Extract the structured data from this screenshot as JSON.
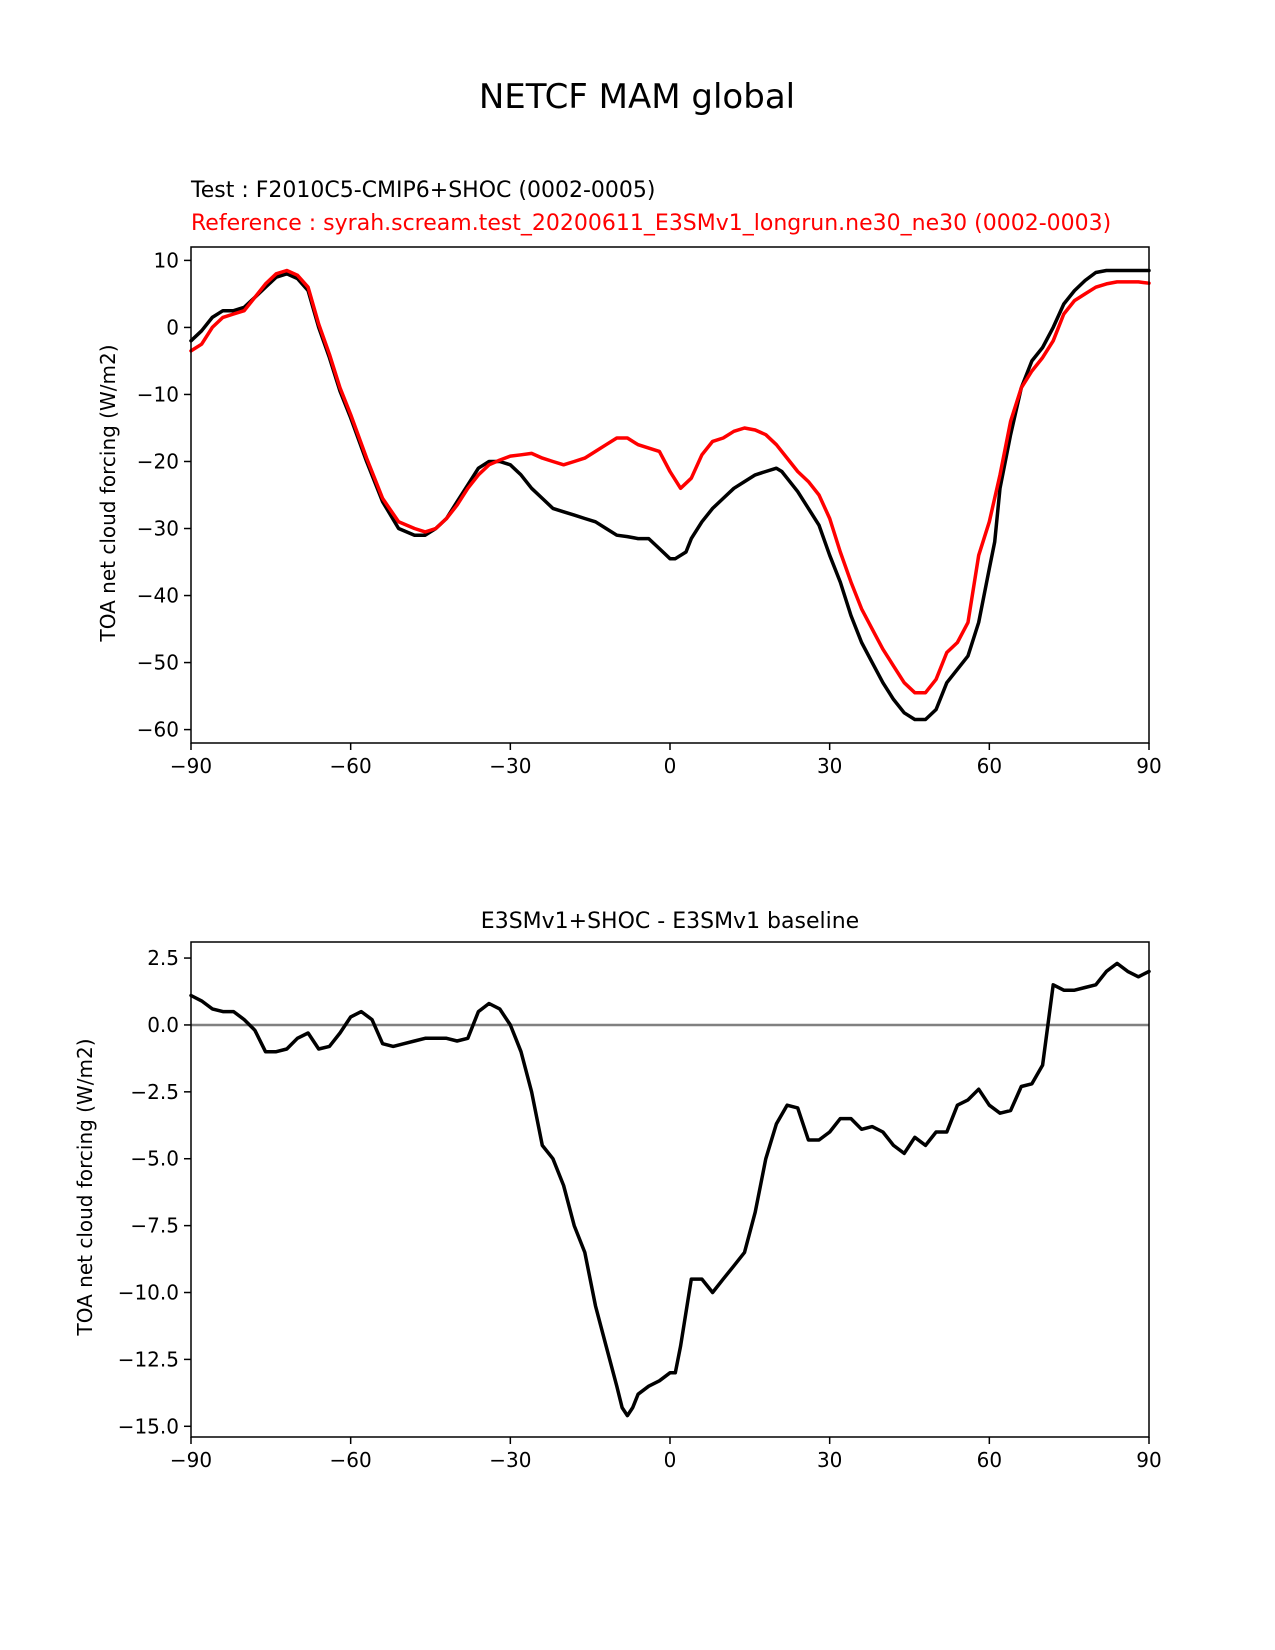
{
  "figure": {
    "title": "NETCF MAM global"
  },
  "chart_data": [
    {
      "type": "line",
      "subtitle_test": "Test : F2010C5-CMIP6+SHOC (0002-0005)",
      "subtitle_ref": "Reference : syrah.scream.test_20200611_E3SMv1_longrun.ne30_ne30 (0002-0003)",
      "xlabel": "",
      "ylabel": "TOA net cloud forcing (W/m2)",
      "xlim": [
        -90,
        90
      ],
      "ylim": [
        -62,
        12
      ],
      "xticks": [
        -90,
        -60,
        -30,
        0,
        30,
        60,
        90
      ],
      "xtick_labels": [
        "−90",
        "−60",
        "−30",
        "0",
        "30",
        "60",
        "90"
      ],
      "yticks": [
        10,
        0,
        -10,
        -20,
        -30,
        -40,
        -50,
        -60
      ],
      "ytick_labels": [
        "10",
        "0",
        "−10",
        "−20",
        "−30",
        "−40",
        "−50",
        "−60"
      ],
      "series": [
        {
          "color": "#000000",
          "x": [
            -90,
            -88,
            -86,
            -84,
            -82,
            -80,
            -78,
            -76,
            -74,
            -72,
            -70,
            -68,
            -66,
            -64,
            -62,
            -60,
            -57,
            -54,
            -51,
            -48,
            -46,
            -44,
            -42,
            -40,
            -38,
            -36,
            -34,
            -32,
            -30,
            -28,
            -26,
            -24,
            -22,
            -20,
            -18,
            -16,
            -14,
            -12,
            -10,
            -8,
            -6,
            -4,
            -2,
            0,
            1,
            3,
            4,
            6,
            8,
            10,
            12,
            14,
            16,
            18,
            20,
            21,
            22,
            24,
            26,
            28,
            30,
            32,
            34,
            36,
            38,
            40,
            42,
            44,
            46,
            48,
            50,
            52,
            54,
            56,
            58,
            60,
            61,
            62,
            64,
            66,
            68,
            70,
            72,
            74,
            76,
            78,
            80,
            82,
            84,
            86,
            88,
            90
          ],
          "y": [
            -2.0,
            -0.5,
            1.5,
            2.5,
            2.5,
            3.0,
            4.5,
            6.0,
            7.5,
            8.0,
            7.3,
            5.5,
            0,
            -4.5,
            -9.5,
            -13.5,
            -20.0,
            -26.0,
            -30.0,
            -31.0,
            -31.0,
            -30.0,
            -28.5,
            -26.0,
            -23.5,
            -21.0,
            -20.0,
            -20.0,
            -20.5,
            -22.0,
            -24.0,
            -25.5,
            -27.0,
            -27.5,
            -28.0,
            -28.5,
            -29.0,
            -30.0,
            -31.0,
            -31.2,
            -31.5,
            -31.5,
            -33.0,
            -34.5,
            -34.5,
            -33.5,
            -31.5,
            -29.0,
            -27.0,
            -25.5,
            -24.0,
            -23.0,
            -22.0,
            -21.5,
            -21.0,
            -21.5,
            -22.5,
            -24.5,
            -27.0,
            -29.5,
            -34.0,
            -38.0,
            -43.0,
            -47.0,
            -50.0,
            -53.0,
            -55.5,
            -57.5,
            -58.5,
            -58.5,
            -57.0,
            -53.0,
            -51.0,
            -49.0,
            -44.0,
            -36.0,
            -32.0,
            -24.0,
            -16.0,
            -9.0,
            -5.0,
            -3.0,
            0,
            3.5,
            5.5,
            7.0,
            8.2,
            8.5,
            8.5,
            8.5,
            8.5,
            8.5
          ]
        },
        {
          "color": "#ff0000",
          "x": [
            -90,
            -88,
            -86,
            -84,
            -82,
            -80,
            -78,
            -76,
            -74,
            -72,
            -70,
            -68,
            -66,
            -64,
            -62,
            -60,
            -57,
            -54,
            -51,
            -48,
            -46,
            -44,
            -42,
            -40,
            -38,
            -36,
            -34,
            -32,
            -30,
            -28,
            -26,
            -24,
            -22,
            -20,
            -18,
            -16,
            -14,
            -12,
            -10,
            -8,
            -6,
            -4,
            -2,
            0,
            2,
            4,
            6,
            8,
            10,
            12,
            14,
            16,
            18,
            20,
            22,
            24,
            26,
            28,
            30,
            32,
            34,
            36,
            38,
            40,
            42,
            44,
            46,
            48,
            50,
            52,
            54,
            56,
            58,
            60,
            62,
            64,
            66,
            68,
            70,
            72,
            74,
            76,
            78,
            80,
            82,
            84,
            86,
            88,
            90
          ],
          "y": [
            -3.5,
            -2.5,
            0,
            1.5,
            2.0,
            2.5,
            4.5,
            6.5,
            8.0,
            8.5,
            7.8,
            6.0,
            0.5,
            -4.0,
            -9.0,
            -13.0,
            -19.5,
            -25.5,
            -29.0,
            -30.0,
            -30.5,
            -30.0,
            -28.5,
            -26.5,
            -24.0,
            -22.0,
            -20.5,
            -19.8,
            -19.2,
            -19.0,
            -18.8,
            -19.5,
            -20.0,
            -20.5,
            -20.0,
            -19.5,
            -18.5,
            -17.5,
            -16.5,
            -16.5,
            -17.5,
            -18.0,
            -18.5,
            -21.5,
            -24.0,
            -22.5,
            -19.0,
            -17.0,
            -16.5,
            -15.5,
            -15.0,
            -15.3,
            -16.0,
            -17.5,
            -19.5,
            -21.5,
            -23.0,
            -25.0,
            -28.5,
            -33.5,
            -38.0,
            -42.0,
            -45.0,
            -48.0,
            -50.5,
            -53.0,
            -54.5,
            -54.5,
            -52.5,
            -48.5,
            -47.0,
            -44.0,
            -34.0,
            -29.0,
            -22.0,
            -14.0,
            -9.0,
            -6.5,
            -4.5,
            -2.0,
            2.0,
            4.0,
            5.0,
            6.0,
            6.5,
            6.8,
            6.8,
            6.8,
            6.6
          ]
        }
      ]
    },
    {
      "type": "line",
      "title": "E3SMv1+SHOC - E3SMv1 baseline",
      "xlabel": "",
      "ylabel": "TOA net cloud forcing (W/m2)",
      "xlim": [
        -90,
        90
      ],
      "ylim": [
        -15.4,
        3.1
      ],
      "xticks": [
        -90,
        -60,
        -30,
        0,
        30,
        60,
        90
      ],
      "xtick_labels": [
        "−90",
        "−60",
        "−30",
        "0",
        "30",
        "60",
        "90"
      ],
      "yticks": [
        2.5,
        0.0,
        -2.5,
        -5.0,
        -7.5,
        -10.0,
        -12.5,
        -15.0
      ],
      "ytick_labels": [
        "2.5",
        "0.0",
        "−2.5",
        "−5.0",
        "−7.5",
        "−10.0",
        "−12.5",
        "−15.0"
      ],
      "zero_line": true,
      "series": [
        {
          "color": "#000000",
          "x": [
            -90,
            -88,
            -86,
            -84,
            -82,
            -80,
            -78,
            -76,
            -74,
            -72,
            -70,
            -68,
            -66,
            -64,
            -62,
            -60,
            -58,
            -56,
            -54,
            -52,
            -50,
            -48,
            -46,
            -44,
            -42,
            -40,
            -38,
            -36,
            -34,
            -32,
            -30,
            -29,
            -28,
            -26,
            -24,
            -22,
            -20,
            -18,
            -16,
            -14,
            -12,
            -10,
            -9,
            -8,
            -7,
            -6,
            -4,
            -2,
            0,
            1,
            2,
            4,
            6,
            8,
            10,
            12,
            14,
            16,
            18,
            20,
            22,
            24,
            26,
            28,
            30,
            32,
            34,
            36,
            38,
            40,
            42,
            44,
            46,
            48,
            50,
            52,
            54,
            56,
            58,
            60,
            62,
            64,
            66,
            68,
            70,
            72,
            74,
            76,
            78,
            80,
            82,
            84,
            86,
            88,
            90
          ],
          "y": [
            1.1,
            0.9,
            0.6,
            0.5,
            0.5,
            0.2,
            -0.2,
            -1.0,
            -1.0,
            -0.9,
            -0.5,
            -0.3,
            -0.9,
            -0.8,
            -0.3,
            0.3,
            0.5,
            0.2,
            -0.7,
            -0.8,
            -0.7,
            -0.6,
            -0.5,
            -0.5,
            -0.5,
            -0.6,
            -0.5,
            0.5,
            0.8,
            0.6,
            0.0,
            -0.5,
            -1.0,
            -2.5,
            -4.5,
            -5.0,
            -6.0,
            -7.5,
            -8.5,
            -10.5,
            -12.0,
            -13.5,
            -14.3,
            -14.6,
            -14.3,
            -13.8,
            -13.5,
            -13.3,
            -13.0,
            -13.0,
            -12.0,
            -9.5,
            -9.5,
            -10.0,
            -9.5,
            -9.0,
            -8.5,
            -7.0,
            -5.0,
            -3.7,
            -3.0,
            -3.1,
            -4.3,
            -4.3,
            -4.0,
            -3.5,
            -3.5,
            -3.9,
            -3.8,
            -4.0,
            -4.5,
            -4.8,
            -4.2,
            -4.5,
            -4.0,
            -4.0,
            -3.0,
            -2.8,
            -2.4,
            -3.0,
            -3.3,
            -3.2,
            -2.3,
            -2.2,
            -1.5,
            1.5,
            1.3,
            1.3,
            1.4,
            1.5,
            2.0,
            2.3,
            2.0,
            1.8,
            2.0
          ]
        }
      ]
    }
  ]
}
